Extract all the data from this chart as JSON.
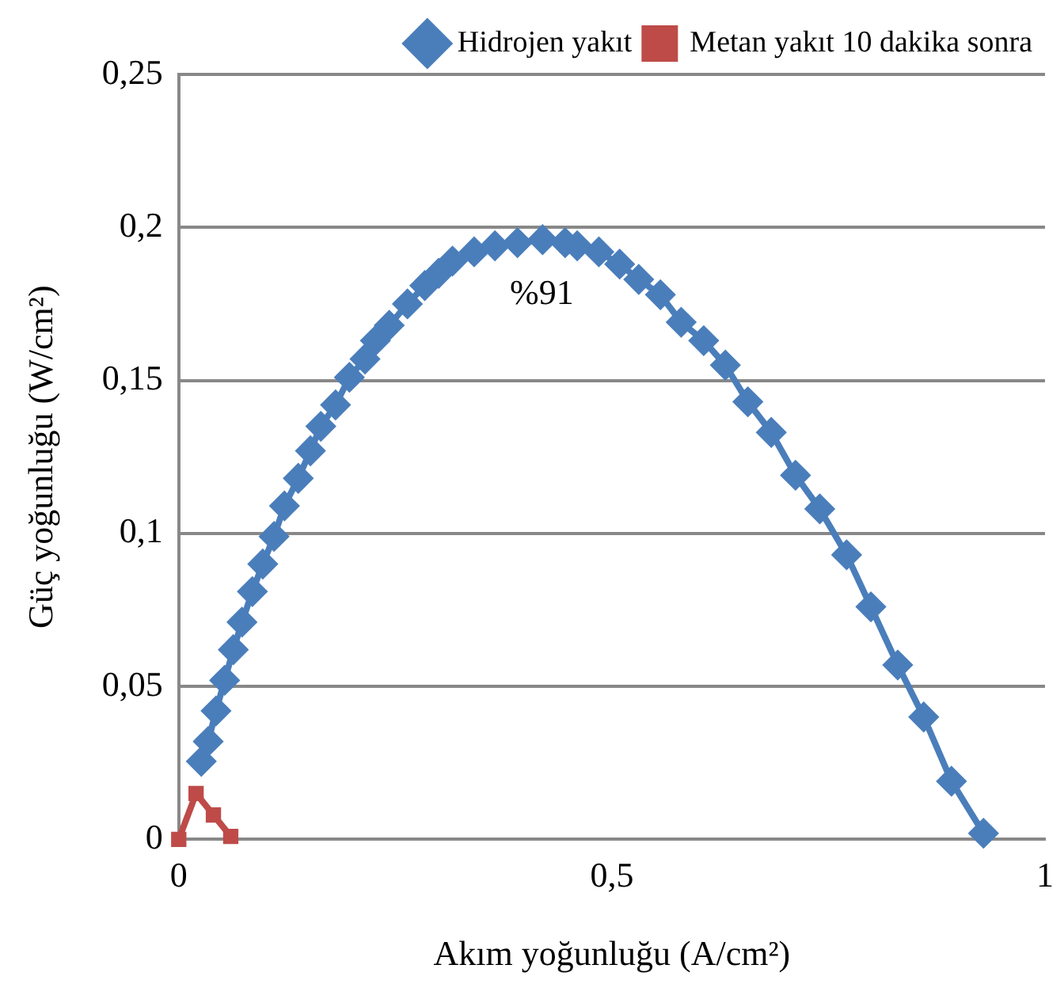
{
  "chart_data": {
    "type": "line",
    "xlabel": "Akım yoğunluğu (A/cm²)",
    "ylabel": "Güç yoğunluğu (W/cm²)",
    "xlim": [
      0,
      1
    ],
    "xticks": [
      0,
      {
        "value": 0.5,
        "label": "0,5"
      },
      1
    ],
    "ylim": [
      0,
      0.25
    ],
    "yticks": [
      0,
      {
        "value": 0.05,
        "label": "0,05"
      },
      {
        "value": 0.1,
        "label": "0,1"
      },
      {
        "value": 0.15,
        "label": "0,15"
      },
      {
        "value": 0.2,
        "label": "0,2"
      },
      {
        "value": 0.25,
        "label": "0,25"
      }
    ],
    "grid": "y",
    "legend": "top right",
    "marker": "diamond",
    "line_style": "solid",
    "annotations": [
      "%91"
    ],
    "series": [
      {
        "name": "Hidrojen yakıt",
        "color": "#4a7ebb",
        "x": [
          0.026,
          0.034,
          0.043,
          0.053,
          0.063,
          0.073,
          0.085,
          0.097,
          0.11,
          0.122,
          0.138,
          0.152,
          0.164,
          0.181,
          0.197,
          0.215,
          0.227,
          0.243,
          0.264,
          0.284,
          0.3,
          0.316,
          0.341,
          0.365,
          0.391,
          0.42,
          0.446,
          0.46,
          0.485,
          0.509,
          0.531,
          0.556,
          0.58,
          0.606,
          0.631,
          0.657,
          0.684,
          0.712,
          0.74,
          0.771,
          0.799,
          0.83,
          0.86,
          0.892,
          0.929
        ],
        "values": [
          0.0255,
          0.032,
          0.042,
          0.052,
          0.062,
          0.071,
          0.081,
          0.09,
          0.099,
          0.109,
          0.118,
          0.127,
          0.135,
          0.142,
          0.151,
          0.157,
          0.163,
          0.168,
          0.175,
          0.181,
          0.185,
          0.189,
          0.192,
          0.194,
          0.195,
          0.196,
          0.195,
          0.194,
          0.192,
          0.188,
          0.183,
          0.178,
          0.169,
          0.163,
          0.155,
          0.143,
          0.133,
          0.119,
          0.108,
          0.093,
          0.076,
          0.057,
          0.04,
          0.019,
          0.002
        ]
      },
      {
        "name": "Metan yakıt 10 dakika sonra",
        "color": "#be4b48",
        "marker": "square",
        "x": [
          0,
          0.02,
          0.04,
          0.06
        ],
        "values": [
          0,
          0.015,
          0.008,
          0.001
        ]
      }
    ]
  }
}
